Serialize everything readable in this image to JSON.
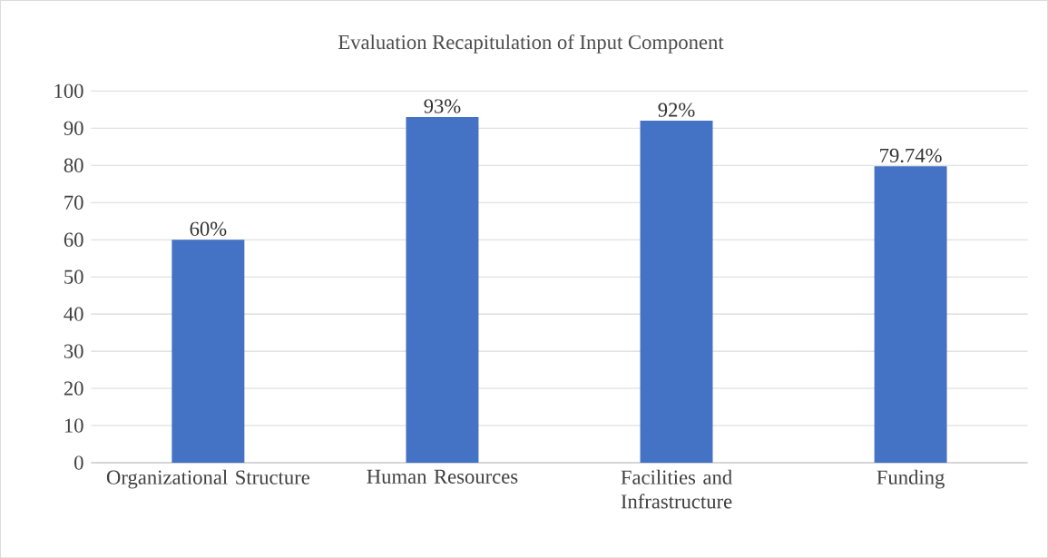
{
  "chart_data": {
    "type": "bar",
    "title": "Evaluation Recapitulation of Input Component",
    "categories": [
      "Organizational Structure",
      "Human Resources",
      "Facilities and Infrastructure",
      "Funding"
    ],
    "values": [
      60,
      93,
      92,
      79.74
    ],
    "value_labels": [
      "60%",
      "93%",
      "92%",
      "79.74%"
    ],
    "color": "#4472c4",
    "ylim": [
      0,
      100
    ],
    "yticks": [
      0,
      10,
      20,
      30,
      40,
      50,
      60,
      70,
      80,
      90,
      100
    ],
    "grid": "y"
  }
}
